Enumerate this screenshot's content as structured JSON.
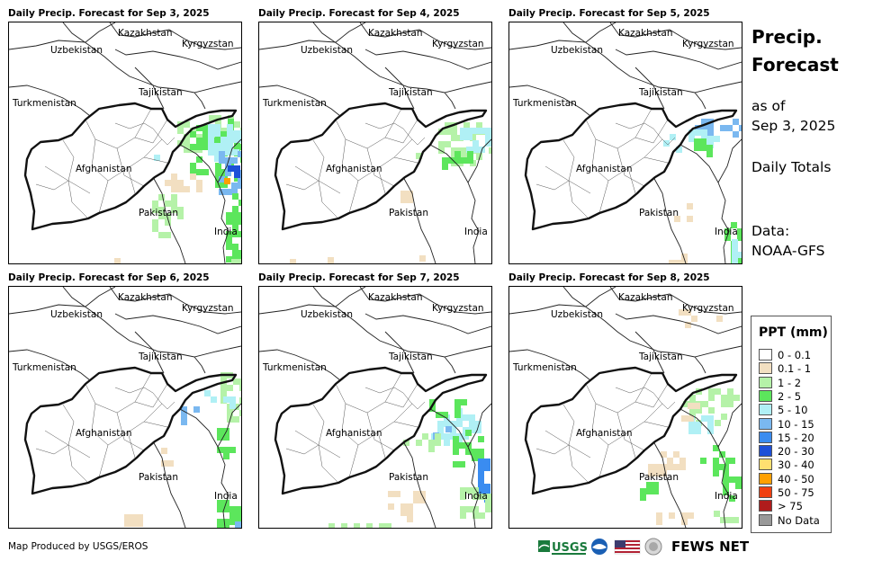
{
  "panels": [
    {
      "title": "Daily Precip. Forecast for Sep 3, 2025"
    },
    {
      "title": "Daily Precip. Forecast for Sep 4, 2025"
    },
    {
      "title": "Daily Precip. Forecast for Sep 5, 2025"
    },
    {
      "title": "Daily Precip. Forecast for Sep 6, 2025"
    },
    {
      "title": "Daily Precip. Forecast for Sep 7, 2025"
    },
    {
      "title": "Daily Precip. Forecast for Sep 8, 2025"
    }
  ],
  "map_labels": {
    "kazakhstan": "Kazakhstan",
    "uzbekistan": "Uzbekistan",
    "kyrgyzstan": "Kyrgyzstan",
    "tajikistan": "Tajikistan",
    "turkmenistan": "Turkmenistan",
    "afghanistan": "Afghanistan",
    "pakistan": "Pakistan",
    "india": "India"
  },
  "side": {
    "title_line1": "Precip.",
    "title_line2": "Forecast",
    "asof_line1": "as of",
    "asof_line2": "Sep 3, 2025",
    "totals": "Daily Totals",
    "data_label": "Data:",
    "data_source": "NOAA-GFS"
  },
  "legend": {
    "title": "PPT (mm)",
    "items": [
      {
        "label": "0 - 0.1",
        "color": "#ffffff"
      },
      {
        "label": "0.1 - 1",
        "color": "#f2dfc1"
      },
      {
        "label": "1 - 2",
        "color": "#b5f2a8"
      },
      {
        "label": "2 - 5",
        "color": "#5ce65c"
      },
      {
        "label": "5 - 10",
        "color": "#b0f0f5"
      },
      {
        "label": "10 - 15",
        "color": "#7ab8f0"
      },
      {
        "label": "15 - 20",
        "color": "#3a8cf0"
      },
      {
        "label": "20 - 30",
        "color": "#1e50d8"
      },
      {
        "label": "30 - 40",
        "color": "#ffe070"
      },
      {
        "label": "40 - 50",
        "color": "#ffa000"
      },
      {
        "label": "50 - 75",
        "color": "#f04010"
      },
      {
        "label": "> 75",
        "color": "#b01c1c"
      },
      {
        "label": "No Data",
        "color": "#999999"
      }
    ]
  },
  "footer": {
    "credit": "Map Produced by USGS/EROS",
    "fews": "FEWS NET",
    "usgs": "USGS"
  }
}
